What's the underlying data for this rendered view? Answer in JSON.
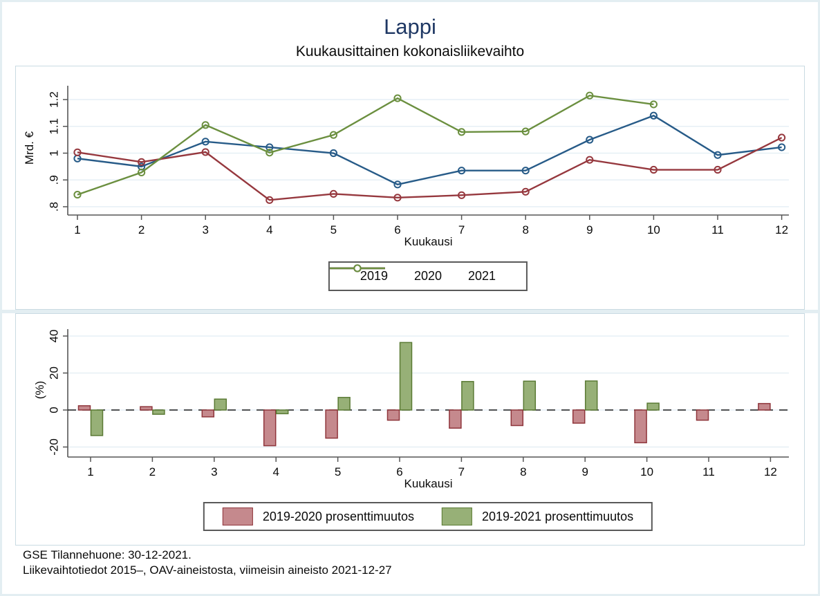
{
  "page": {
    "title": "Lappi",
    "subtitle": "Kuukausittainen kokonaisliikevaihto"
  },
  "footer": {
    "line1": "GSE Tilannehuone: 30-12-2021.",
    "line2": "Liikevaihtotiedot 2015–, OAV-aineistosta, viimeisin aineisto 2021-12-27"
  },
  "colors": {
    "title_navy": "#1f3864",
    "axis": "#555555",
    "grid": "#e6eff5",
    "panel_border": "#c9dae2",
    "page_border": "#e3eef2",
    "zero_line": "#1a1a1a",
    "line_2019": "#275b88",
    "line_2020": "#96383e",
    "line_2021": "#6b8f3f",
    "bar_2020_fill": "#c5898d",
    "bar_2020_stroke": "#8f353b",
    "bar_2021_fill": "#97b077",
    "bar_2021_stroke": "#5a7a34"
  },
  "chart_data": [
    {
      "type": "line",
      "title": "Lappi",
      "subtitle": "Kuukausittainen kokonaisliikevaihto",
      "xlabel": "Kuukausi",
      "ylabel": "Mrd. €",
      "x": [
        1,
        2,
        3,
        4,
        5,
        6,
        7,
        8,
        9,
        10,
        11,
        12
      ],
      "ylim": [
        0.75,
        1.25
      ],
      "ytick_values": [
        0.8,
        0.9,
        1.0,
        1.1,
        1.2
      ],
      "ytick_labels": [
        ".8",
        ".9",
        "1",
        "1.1",
        "1.2"
      ],
      "grid": true,
      "legend_position": "bottom",
      "marker": "hollow-circle",
      "series": [
        {
          "name": "2019",
          "color": "#275b88",
          "values": [
            0.98,
            0.95,
            1.043,
            1.022,
            1.0,
            0.883,
            0.935,
            0.935,
            1.05,
            1.14,
            0.993,
            1.022
          ]
        },
        {
          "name": "2020",
          "color": "#96383e",
          "values": [
            1.003,
            0.967,
            1.004,
            0.825,
            0.848,
            0.834,
            0.843,
            0.856,
            0.975,
            0.938,
            0.938,
            1.058
          ]
        },
        {
          "name": "2021",
          "color": "#6b8f3f",
          "values": [
            0.845,
            0.928,
            1.105,
            1.002,
            1.068,
            1.205,
            1.079,
            1.081,
            1.215,
            1.182,
            null,
            null
          ]
        }
      ]
    },
    {
      "type": "bar",
      "xlabel": "Kuukausi",
      "ylabel": "(%)",
      "categories": [
        1,
        2,
        3,
        4,
        5,
        6,
        7,
        8,
        9,
        10,
        11,
        12
      ],
      "ylim": [
        -25,
        45
      ],
      "ytick_values": [
        -20,
        0,
        20,
        40
      ],
      "ytick_labels": [
        "-20",
        "0",
        "20",
        "40"
      ],
      "grid": true,
      "zero_line": "dashed",
      "legend_position": "bottom",
      "series": [
        {
          "name": "2019-2020 prosenttimuutos",
          "fill": "#c5898d",
          "stroke": "#8f353b",
          "values": [
            2.3,
            1.8,
            -3.7,
            -19.3,
            -15.2,
            -5.5,
            -9.8,
            -8.4,
            -7.1,
            -17.7,
            -5.5,
            3.5
          ]
        },
        {
          "name": "2019-2021 prosenttimuutos",
          "fill": "#97b077",
          "stroke": "#5a7a34",
          "values": [
            -13.8,
            -2.3,
            5.9,
            -2.0,
            6.8,
            36.5,
            15.4,
            15.6,
            15.7,
            3.7,
            null,
            null
          ]
        }
      ]
    }
  ]
}
